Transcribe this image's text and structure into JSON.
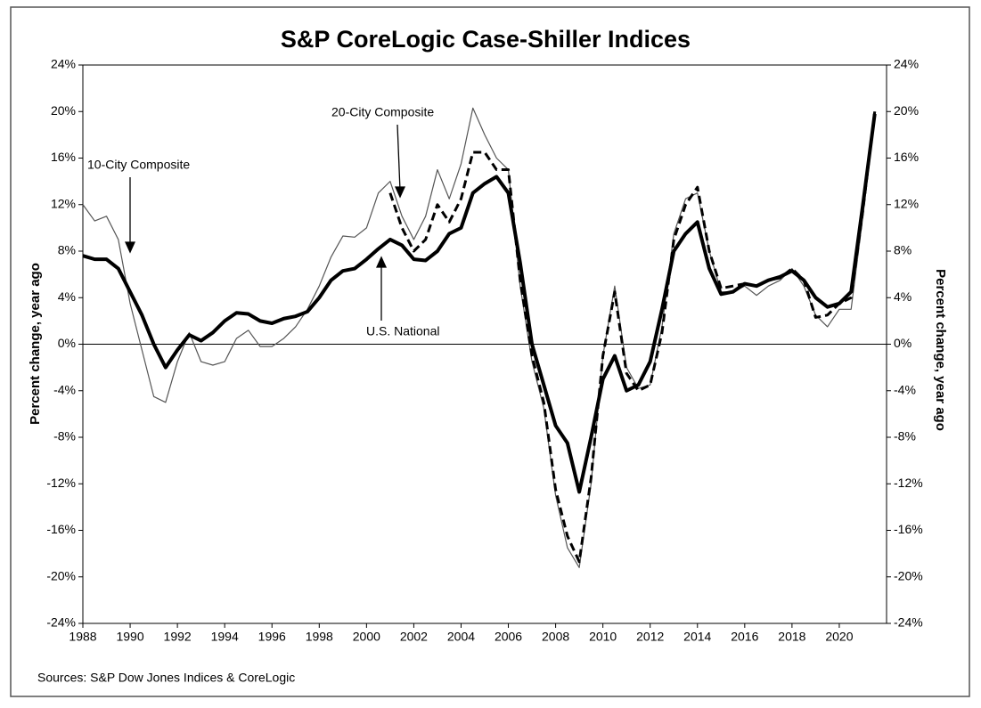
{
  "chart_data": {
    "type": "line",
    "title": "S&P CoreLogic Case-Shiller Indices",
    "y_label": "Percent change, year ago",
    "y2_label": "Percent change, year ago",
    "source": "Sources: S&P Dow Jones Indices & CoreLogic",
    "x": [
      1988,
      1988.5,
      1989,
      1989.5,
      1990,
      1990.5,
      1991,
      1991.5,
      1992,
      1992.5,
      1993,
      1993.5,
      1994,
      1994.5,
      1995,
      1995.5,
      1996,
      1996.5,
      1997,
      1997.5,
      1998,
      1998.5,
      1999,
      1999.5,
      2000,
      2000.5,
      2001,
      2001.5,
      2002,
      2002.5,
      2003,
      2003.5,
      2004,
      2004.5,
      2005,
      2005.5,
      2006,
      2006.5,
      2007,
      2007.5,
      2008,
      2008.5,
      2009,
      2009.5,
      2010,
      2010.5,
      2011,
      2011.5,
      2012,
      2012.5,
      2013,
      2013.5,
      2014,
      2014.5,
      2015,
      2015.5,
      2016,
      2016.5,
      2017,
      2017.5,
      2018,
      2018.5,
      2019,
      2019.5,
      2020,
      2020.5,
      2021,
      2021.5
    ],
    "xlim": [
      1988,
      2022
    ],
    "xticks": [
      1988,
      1990,
      1992,
      1994,
      1996,
      1998,
      2000,
      2002,
      2004,
      2006,
      2008,
      2010,
      2012,
      2014,
      2016,
      2018,
      2020
    ],
    "ylim": [
      -24,
      24
    ],
    "yticks": [
      {
        "value": -24,
        "label": "-24%"
      },
      {
        "value": -20,
        "label": "-20%"
      },
      {
        "value": -16,
        "label": "-16%"
      },
      {
        "value": -12,
        "label": "-12%"
      },
      {
        "value": -8,
        "label": "-8%"
      },
      {
        "value": -4,
        "label": "-4%"
      },
      {
        "value": 0,
        "label": "0%"
      },
      {
        "value": 4,
        "label": "4%"
      },
      {
        "value": 8,
        "label": "8%"
      },
      {
        "value": 12,
        "label": "12%"
      },
      {
        "value": 16,
        "label": "16%"
      },
      {
        "value": 20,
        "label": "20%"
      },
      {
        "value": 24,
        "label": "24%"
      }
    ],
    "y2lim": [
      -24,
      24
    ],
    "y2ticks": [
      {
        "value": -24,
        "label": "-24%"
      },
      {
        "value": -20,
        "label": "-20%"
      },
      {
        "value": -16,
        "label": "-16%"
      },
      {
        "value": -12,
        "label": "-12%"
      },
      {
        "value": -8,
        "label": "-8%"
      },
      {
        "value": -4,
        "label": "-4%"
      },
      {
        "value": 0,
        "label": "0%"
      },
      {
        "value": 4,
        "label": "4%"
      },
      {
        "value": 8,
        "label": "8%"
      },
      {
        "value": 12,
        "label": "12%"
      },
      {
        "value": 16,
        "label": "16%"
      },
      {
        "value": 20,
        "label": "20%"
      },
      {
        "value": 24,
        "label": "24%"
      }
    ],
    "series": [
      {
        "name": "10-City Composite",
        "color": "#555555",
        "style": "thin",
        "values": [
          12.0,
          10.6,
          11.0,
          9.0,
          3.5,
          -0.5,
          -4.5,
          -5.0,
          -1.5,
          1.0,
          -1.5,
          -1.8,
          -1.5,
          0.5,
          1.2,
          -0.2,
          -0.2,
          0.5,
          1.5,
          3.0,
          5.0,
          7.5,
          9.3,
          9.2,
          10.0,
          13.0,
          14.0,
          11.0,
          9.0,
          11.0,
          15.0,
          12.5,
          15.5,
          20.3,
          18.0,
          16.0,
          15.0,
          5.0,
          -1.5,
          -5.5,
          -13.0,
          -17.5,
          -19.2,
          -12.0,
          -1.0,
          5.0,
          -2.0,
          -3.8,
          -3.5,
          1.5,
          9.5,
          12.5,
          13.0,
          8.0,
          4.5,
          4.5,
          5.0,
          4.2,
          5.0,
          5.5,
          6.5,
          5.0,
          2.5,
          1.5,
          3.0,
          3.0,
          11.0,
          19.5
        ]
      },
      {
        "name": "20-City Composite",
        "color": "#000000",
        "style": "dashed",
        "values": [
          null,
          null,
          null,
          null,
          null,
          null,
          null,
          null,
          null,
          null,
          null,
          null,
          null,
          null,
          null,
          null,
          null,
          null,
          null,
          null,
          null,
          null,
          null,
          null,
          null,
          null,
          13.0,
          10.0,
          8.0,
          9.0,
          12.0,
          10.5,
          12.5,
          16.5,
          16.5,
          15.0,
          15.0,
          5.5,
          -1.0,
          -5.0,
          -12.5,
          -16.5,
          -18.7,
          -11.5,
          -1.0,
          4.5,
          -2.5,
          -4.0,
          -3.5,
          1.0,
          9.0,
          12.0,
          13.5,
          8.0,
          4.8,
          5.0,
          5.2,
          5.0,
          5.5,
          5.7,
          6.5,
          5.5,
          2.3,
          2.5,
          3.5,
          4.0,
          11.5,
          20.0
        ]
      },
      {
        "name": "U.S. National",
        "color": "#000000",
        "style": "thick",
        "values": [
          7.6,
          7.3,
          7.3,
          6.5,
          4.5,
          2.5,
          0.0,
          -2.0,
          -0.5,
          0.8,
          0.3,
          1.0,
          2.0,
          2.7,
          2.6,
          2.0,
          1.8,
          2.2,
          2.4,
          2.8,
          4.0,
          5.5,
          6.3,
          6.5,
          7.3,
          8.2,
          9.0,
          8.5,
          7.3,
          7.2,
          8.0,
          9.5,
          10.0,
          13.0,
          13.8,
          14.4,
          13.0,
          7.0,
          0.0,
          -3.5,
          -7.0,
          -8.5,
          -12.7,
          -8.0,
          -3.0,
          -1.0,
          -4.0,
          -3.5,
          -1.5,
          3.0,
          8.0,
          9.5,
          10.5,
          6.5,
          4.3,
          4.5,
          5.2,
          5.0,
          5.5,
          5.8,
          6.3,
          5.5,
          4.0,
          3.2,
          3.5,
          4.5,
          12.0,
          19.8
        ]
      }
    ]
  }
}
